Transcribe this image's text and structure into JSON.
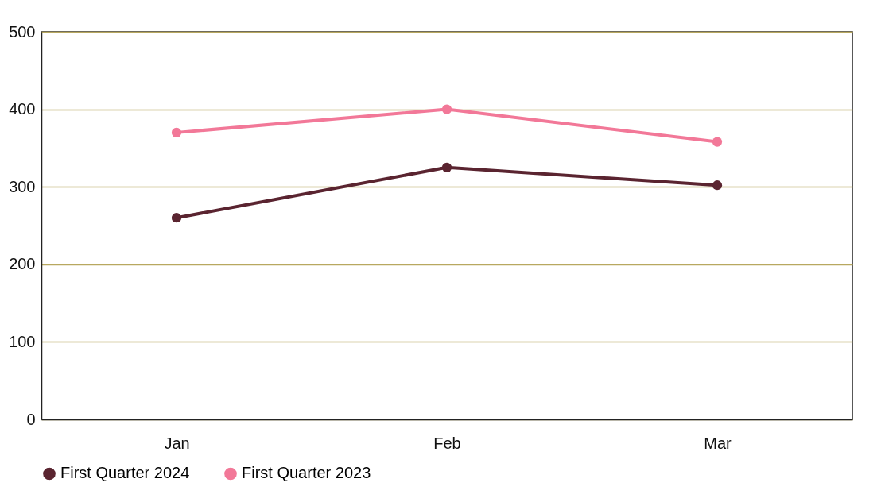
{
  "chart_data": {
    "type": "line",
    "categories": [
      "Jan",
      "Feb",
      "Mar"
    ],
    "series": [
      {
        "name": "First Quarter 2024",
        "color": "#5a2430",
        "values": [
          260,
          325,
          302
        ]
      },
      {
        "name": "First Quarter 2023",
        "color": "#f27898",
        "values": [
          370,
          400,
          358
        ]
      }
    ],
    "ylim": [
      0,
      500
    ],
    "yticks": [
      0,
      100,
      200,
      300,
      400,
      500
    ],
    "grid": "y",
    "legend": "bottom",
    "marker": "circle",
    "line_style": "solid"
  }
}
